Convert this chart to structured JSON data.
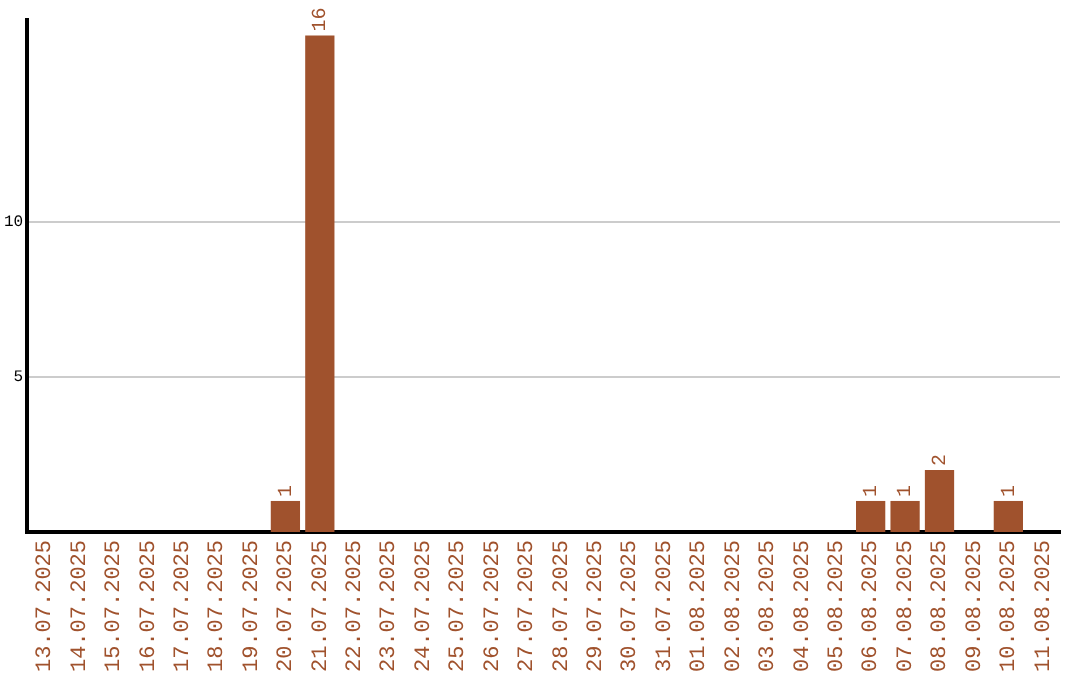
{
  "chart_data": {
    "type": "bar",
    "categories": [
      "13.07.2025",
      "14.07.2025",
      "15.07.2025",
      "16.07.2025",
      "17.07.2025",
      "18.07.2025",
      "19.07.2025",
      "20.07.2025",
      "21.07.2025",
      "22.07.2025",
      "23.07.2025",
      "24.07.2025",
      "25.07.2025",
      "26.07.2025",
      "27.07.2025",
      "28.07.2025",
      "29.07.2025",
      "30.07.2025",
      "31.07.2025",
      "01.08.2025",
      "02.08.2025",
      "03.08.2025",
      "04.08.2025",
      "05.08.2025",
      "06.08.2025",
      "07.08.2025",
      "08.08.2025",
      "09.08.2025",
      "10.08.2025",
      "11.08.2025"
    ],
    "values": [
      0,
      0,
      0,
      0,
      0,
      0,
      0,
      1,
      16,
      0,
      0,
      0,
      0,
      0,
      0,
      0,
      0,
      0,
      0,
      0,
      0,
      0,
      0,
      0,
      1,
      1,
      2,
      0,
      1,
      0
    ],
    "value_labels": [
      null,
      null,
      null,
      null,
      null,
      null,
      null,
      "1",
      "16",
      null,
      null,
      null,
      null,
      null,
      null,
      null,
      null,
      null,
      null,
      null,
      null,
      null,
      null,
      null,
      "1",
      "1",
      "2",
      null,
      "1",
      null
    ],
    "color": "#a0522d",
    "ylim": [
      0,
      16.5
    ],
    "yticks": [
      5,
      10
    ],
    "grid": "y",
    "legend": false
  }
}
